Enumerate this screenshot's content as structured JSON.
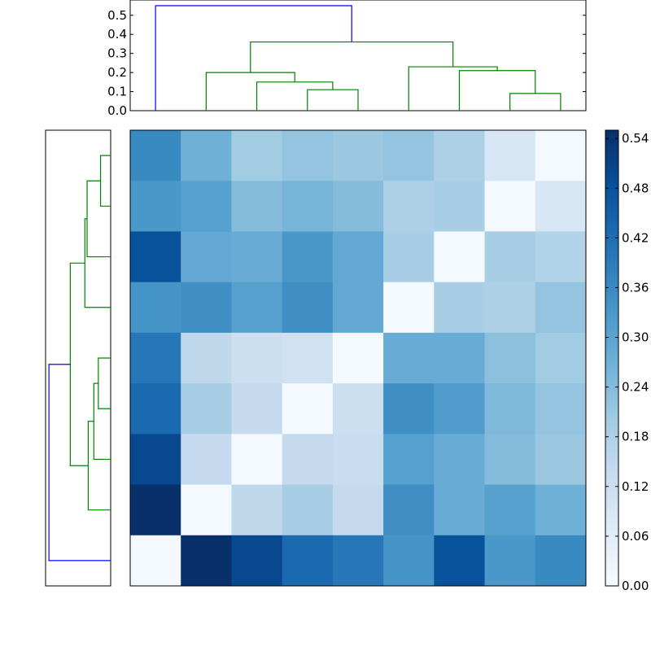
{
  "chart_data": [
    {
      "type": "dendrogram",
      "position": "top",
      "ylim": [
        0,
        0.58
      ],
      "yticks": [
        0.0,
        0.1,
        0.2,
        0.3,
        0.4,
        0.5
      ],
      "ytick_labels": [
        "0.0",
        "0.1",
        "0.2",
        "0.3",
        "0.4",
        "0.5"
      ],
      "leaf_order": [
        9,
        8,
        7,
        6,
        5,
        4,
        3,
        2,
        1
      ],
      "links": [
        {
          "left": [
            9,
            0.0
          ],
          "right": [
            1,
            0.0
          ],
          "height": 0.0,
          "merge": 0.0
        },
        {
          "left": 4,
          "right": 5,
          "height": 0.11,
          "color": "#008000"
        },
        {
          "left": 3,
          "right": 4.5,
          "height": 0.15,
          "color": "#008000"
        },
        {
          "left": 2,
          "right": 3.75,
          "height": 0.2,
          "color": "#008000"
        },
        {
          "left": 8,
          "right": 9,
          "height": 0.09,
          "color": "#008000"
        },
        {
          "left": 7,
          "right": 8.5,
          "height": 0.21,
          "color": "#008000"
        },
        {
          "left": 6,
          "right": 7.75,
          "height": 0.23,
          "color": "#008000"
        },
        {
          "left": 2.875,
          "right": 6.875,
          "height": 0.36,
          "color": "#008000"
        },
        {
          "left": 1,
          "right": 4.875,
          "height": 0.55,
          "color": "#0000ff"
        }
      ]
    },
    {
      "type": "heatmap",
      "colormap": "Blues",
      "vmin": 0.0,
      "vmax": 0.55,
      "colorbar_ticks": [
        0.0,
        0.06,
        0.12,
        0.18,
        0.24,
        0.3,
        0.36,
        0.42,
        0.48,
        0.54
      ],
      "colorbar_tick_labels": [
        "0.00",
        "0.06",
        "0.12",
        "0.18",
        "0.24",
        "0.30",
        "0.36",
        "0.42",
        "0.48",
        "0.54"
      ],
      "values": [
        [
          0.36,
          0.27,
          0.2,
          0.22,
          0.21,
          0.22,
          0.18,
          0.09,
          0.01
        ],
        [
          0.33,
          0.31,
          0.24,
          0.26,
          0.24,
          0.18,
          0.19,
          0.01,
          0.09
        ],
        [
          0.48,
          0.29,
          0.28,
          0.33,
          0.29,
          0.19,
          0.01,
          0.19,
          0.17
        ],
        [
          0.34,
          0.35,
          0.31,
          0.35,
          0.29,
          0.01,
          0.19,
          0.18,
          0.22
        ],
        [
          0.4,
          0.15,
          0.12,
          0.11,
          0.01,
          0.28,
          0.28,
          0.23,
          0.2
        ],
        [
          0.43,
          0.19,
          0.14,
          0.01,
          0.12,
          0.35,
          0.32,
          0.25,
          0.22
        ],
        [
          0.5,
          0.14,
          0.01,
          0.14,
          0.13,
          0.31,
          0.28,
          0.24,
          0.21
        ],
        [
          0.55,
          0.01,
          0.15,
          0.19,
          0.14,
          0.35,
          0.28,
          0.31,
          0.27
        ],
        [
          0.01,
          0.55,
          0.5,
          0.43,
          0.4,
          0.34,
          0.48,
          0.33,
          0.36
        ]
      ]
    },
    {
      "type": "dendrogram",
      "position": "left",
      "links": [
        {
          "a": 0,
          "b": 1,
          "height": 0.09,
          "color": "#008000"
        },
        {
          "a": 0.5,
          "b": 2,
          "height": 0.21,
          "color": "#008000"
        },
        {
          "a": 1.25,
          "b": 3,
          "height": 0.23,
          "color": "#008000"
        },
        {
          "a": 4,
          "b": 5,
          "height": 0.11,
          "color": "#008000"
        },
        {
          "a": 4.5,
          "b": 6,
          "height": 0.15,
          "color": "#008000"
        },
        {
          "a": 5.25,
          "b": 7,
          "height": 0.2,
          "color": "#008000"
        },
        {
          "a": 2.125,
          "b": 6.125,
          "height": 0.36,
          "color": "#008000"
        },
        {
          "a": 4.125,
          "b": 8,
          "height": 0.55,
          "color": "#0000ff"
        }
      ]
    }
  ]
}
